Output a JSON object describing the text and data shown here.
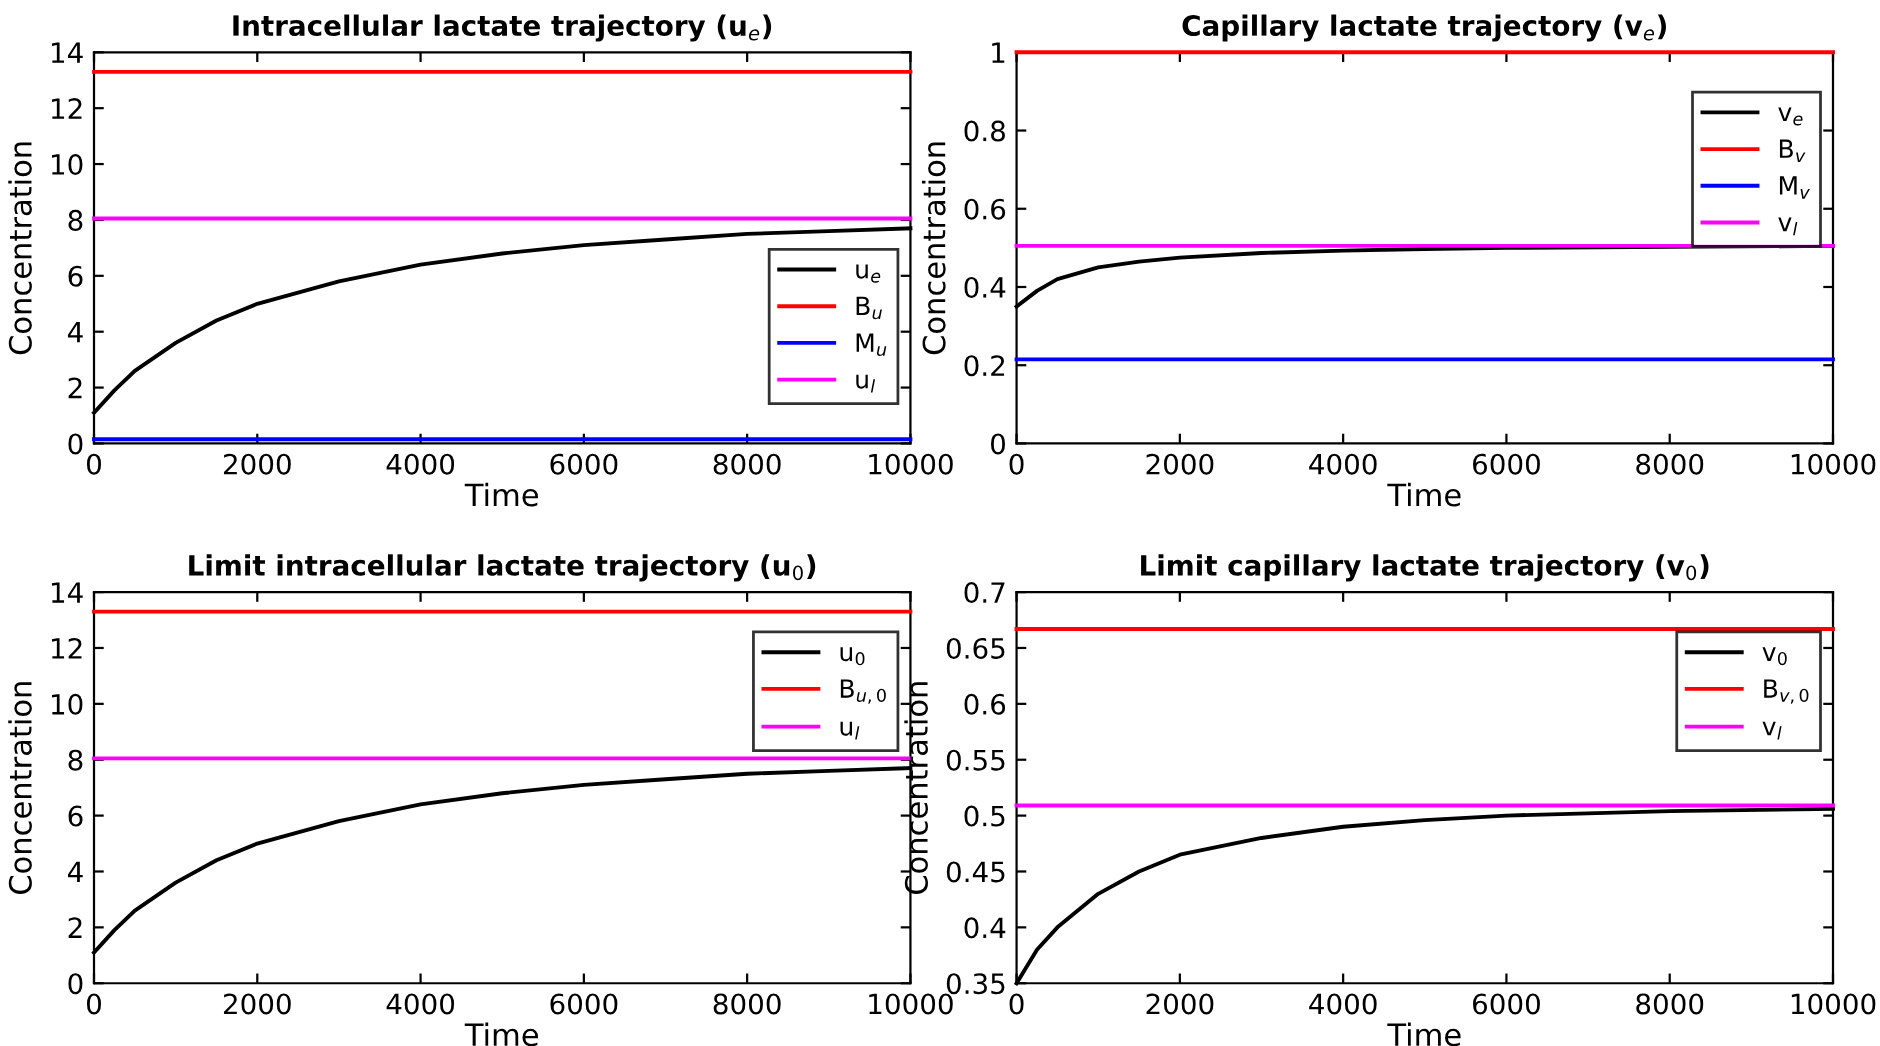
{
  "chart_data": [
    {
      "type": "line",
      "title": "Intracellular lactate trajectory (u$_{e}$)",
      "xlabel": "Time",
      "ylabel": "Concentration",
      "xlim": [
        0,
        10000
      ],
      "xticks": [
        0,
        2000,
        4000,
        6000,
        8000,
        10000
      ],
      "ylim": [
        0,
        14
      ],
      "yticks": [
        0,
        2,
        4,
        6,
        8,
        10,
        12,
        14
      ],
      "grid": false,
      "legend": "right",
      "series": [
        {
          "name": "u$_{e}$",
          "color": "#000000",
          "x": [
            0,
            250,
            500,
            1000,
            1500,
            2000,
            3000,
            4000,
            5000,
            6000,
            7000,
            8000,
            9000,
            10000
          ],
          "values": [
            1.1,
            1.9,
            2.6,
            3.6,
            4.4,
            5.0,
            5.8,
            6.4,
            6.8,
            7.1,
            7.3,
            7.5,
            7.6,
            7.7
          ]
        },
        {
          "name": "B$_{u}$",
          "color": "#ff0000",
          "x": [
            0,
            10000
          ],
          "values": [
            13.3,
            13.3
          ]
        },
        {
          "name": "M$_{u}$",
          "color": "#0000ff",
          "x": [
            0,
            10000
          ],
          "values": [
            0.15,
            0.15
          ]
        },
        {
          "name": "u$_{l}$",
          "color": "#ff00ff",
          "x": [
            0,
            10000
          ],
          "values": [
            8.05,
            8.05
          ]
        }
      ]
    },
    {
      "type": "line",
      "title": "Capillary lactate trajectory (v$_{e}$)",
      "xlabel": "Time",
      "ylabel": "Concentration",
      "xlim": [
        0,
        10000
      ],
      "xticks": [
        0,
        2000,
        4000,
        6000,
        8000,
        10000
      ],
      "ylim": [
        0,
        1
      ],
      "yticks": [
        0,
        0.2,
        0.4,
        0.6,
        0.8,
        1
      ],
      "grid": false,
      "legend": "top right",
      "series": [
        {
          "name": "v$_{e}$",
          "color": "#000000",
          "x": [
            0,
            250,
            500,
            1000,
            1500,
            2000,
            3000,
            4000,
            5000,
            6000,
            8000,
            10000
          ],
          "values": [
            0.35,
            0.39,
            0.42,
            0.45,
            0.465,
            0.475,
            0.487,
            0.493,
            0.497,
            0.5,
            0.503,
            0.505
          ]
        },
        {
          "name": "B$_{v}$",
          "color": "#ff0000",
          "x": [
            0,
            10000
          ],
          "values": [
            1,
            1
          ]
        },
        {
          "name": "M$_{v}$",
          "color": "#0000ff",
          "x": [
            0,
            10000
          ],
          "values": [
            0.215,
            0.215
          ]
        },
        {
          "name": "v$_{l}$",
          "color": "#ff00ff",
          "x": [
            0,
            10000
          ],
          "values": [
            0.505,
            0.505
          ]
        }
      ]
    },
    {
      "type": "line",
      "title": "Limit intracellular lactate trajectory (u$_{0}$)",
      "xlabel": "Time",
      "ylabel": "Concentration",
      "xlim": [
        0,
        10000
      ],
      "xticks": [
        0,
        2000,
        4000,
        6000,
        8000,
        10000
      ],
      "ylim": [
        0,
        14
      ],
      "yticks": [
        0,
        2,
        4,
        6,
        8,
        10,
        12,
        14
      ],
      "grid": false,
      "legend": "top right",
      "series": [
        {
          "name": "u$_{0}$",
          "color": "#000000",
          "x": [
            0,
            250,
            500,
            1000,
            1500,
            2000,
            3000,
            4000,
            5000,
            6000,
            7000,
            8000,
            9000,
            10000
          ],
          "values": [
            1.1,
            1.9,
            2.6,
            3.6,
            4.4,
            5.0,
            5.8,
            6.4,
            6.8,
            7.1,
            7.3,
            7.5,
            7.6,
            7.7
          ]
        },
        {
          "name": "B$_{u,0}$",
          "color": "#ff0000",
          "x": [
            0,
            10000
          ],
          "values": [
            13.3,
            13.3
          ]
        },
        {
          "name": "u$_{l}$",
          "color": "#ff00ff",
          "x": [
            0,
            10000
          ],
          "values": [
            8.05,
            8.05
          ]
        }
      ]
    },
    {
      "type": "line",
      "title": "Limit capillary lactate trajectory (v$_{0}$)",
      "xlabel": "Time",
      "ylabel": "Concentration",
      "xlim": [
        0,
        10000
      ],
      "xticks": [
        0,
        2000,
        4000,
        6000,
        8000,
        10000
      ],
      "ylim": [
        0.35,
        0.7
      ],
      "yticks": [
        0.35,
        0.4,
        0.45,
        0.5,
        0.55,
        0.6,
        0.65,
        0.7
      ],
      "grid": false,
      "legend": "top right",
      "series": [
        {
          "name": "v$_{0}$",
          "color": "#000000",
          "x": [
            0,
            250,
            500,
            1000,
            1500,
            2000,
            3000,
            4000,
            5000,
            6000,
            8000,
            10000
          ],
          "values": [
            0.35,
            0.38,
            0.4,
            0.43,
            0.45,
            0.465,
            0.48,
            0.49,
            0.496,
            0.5,
            0.504,
            0.506
          ]
        },
        {
          "name": "B$_{v,0}$",
          "color": "#ff0000",
          "x": [
            0,
            10000
          ],
          "values": [
            0.667,
            0.667
          ]
        },
        {
          "name": "v$_{l}$",
          "color": "#ff00ff",
          "x": [
            0,
            10000
          ],
          "values": [
            0.509,
            0.509
          ]
        }
      ]
    }
  ]
}
